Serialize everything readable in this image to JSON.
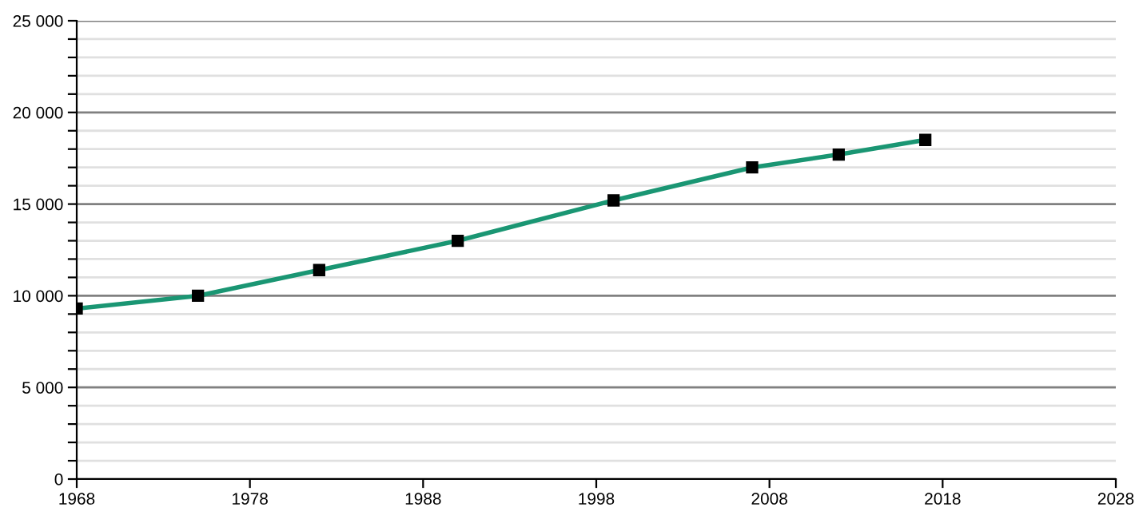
{
  "chart_data": {
    "type": "line",
    "x": [
      1968,
      1975,
      1982,
      1990,
      1999,
      2007,
      2012,
      2017
    ],
    "series": [
      {
        "color": "#1a9673",
        "values": [
          9300,
          10000,
          11400,
          13000,
          15200,
          17000,
          17700,
          18500
        ]
      }
    ],
    "marker": "square",
    "line_style": "solid",
    "grid": "y",
    "xlim": [
      1968,
      2028
    ],
    "xticks": [
      1968,
      1978,
      1988,
      1998,
      2008,
      2018,
      2028
    ],
    "ylim": [
      0,
      25000
    ],
    "yticks": [
      {
        "value": 0,
        "label": "0"
      },
      {
        "value": 1000,
        "label": null
      },
      {
        "value": 2000,
        "label": null
      },
      {
        "value": 3000,
        "label": null
      },
      {
        "value": 4000,
        "label": null
      },
      {
        "value": 5000,
        "label": "5 000"
      },
      {
        "value": 6000,
        "label": null
      },
      {
        "value": 7000,
        "label": null
      },
      {
        "value": 8000,
        "label": null
      },
      {
        "value": 9000,
        "label": null
      },
      {
        "value": 10000,
        "label": "10 000"
      },
      {
        "value": 11000,
        "label": null
      },
      {
        "value": 12000,
        "label": null
      },
      {
        "value": 13000,
        "label": null
      },
      {
        "value": 14000,
        "label": null
      },
      {
        "value": 15000,
        "label": "15 000"
      },
      {
        "value": 16000,
        "label": null
      },
      {
        "value": 17000,
        "label": null
      },
      {
        "value": 18000,
        "label": null
      },
      {
        "value": 19000,
        "label": null
      },
      {
        "value": 20000,
        "label": "20 000"
      },
      {
        "value": 21000,
        "label": null
      },
      {
        "value": 22000,
        "label": null
      },
      {
        "value": 23000,
        "label": null
      },
      {
        "value": 24000,
        "label": null
      },
      {
        "value": 25000,
        "label": "25 000"
      }
    ]
  }
}
